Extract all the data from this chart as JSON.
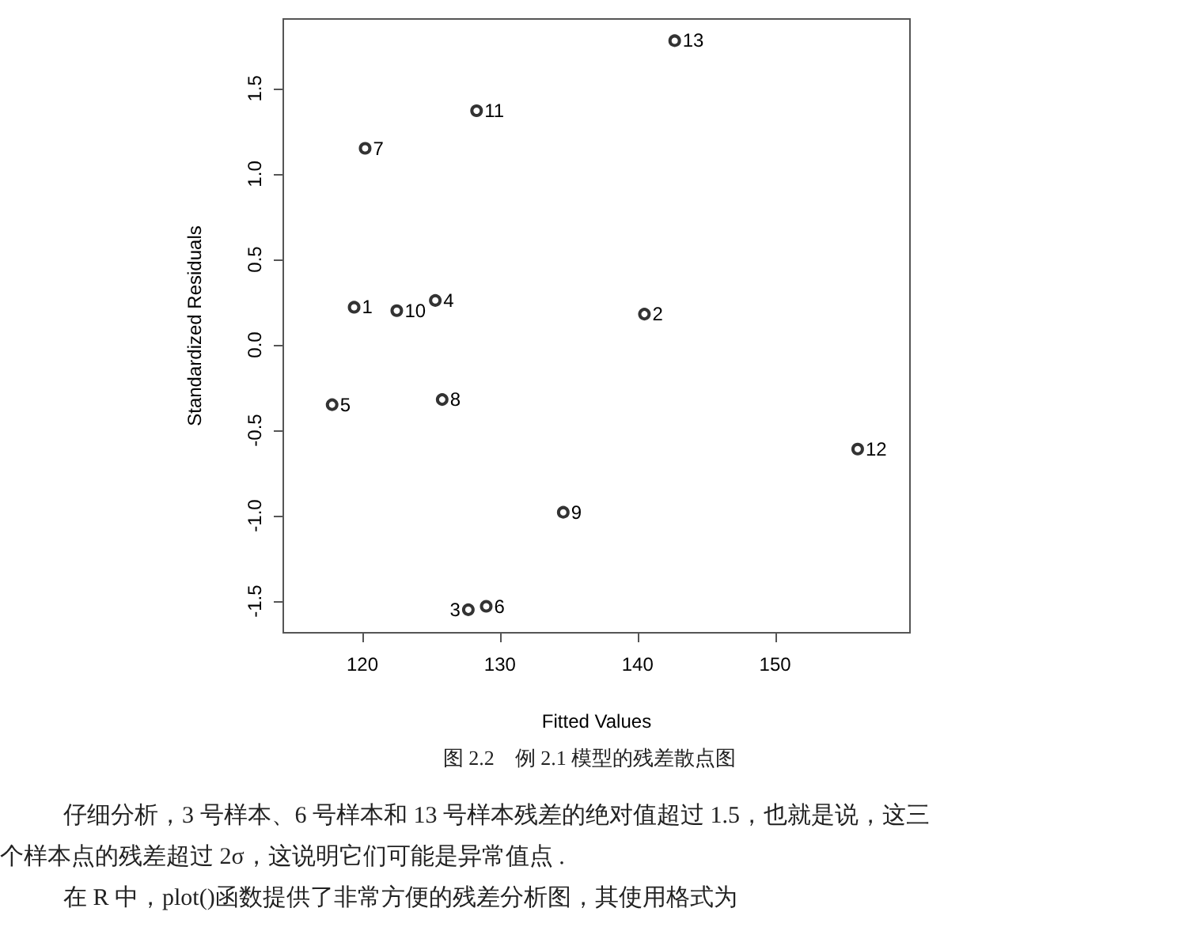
{
  "chart_data": {
    "type": "scatter",
    "xlabel": "Fitted Values",
    "ylabel": "Standardized Residuals",
    "x": [
      119.4,
      140.5,
      127.7,
      125.3,
      117.8,
      129.0,
      120.2,
      125.8,
      134.6,
      122.5,
      128.3,
      156.0,
      142.7
    ],
    "values": [
      0.22,
      0.18,
      -1.55,
      0.26,
      -0.35,
      -1.53,
      1.15,
      -0.32,
      -0.98,
      0.2,
      1.37,
      -0.61,
      1.78
    ],
    "color": "#000000",
    "marker": "circle",
    "grid": false,
    "xlim": [
      114.25,
      159.8
    ],
    "ylim": [
      -1.685,
      1.907
    ],
    "xticks": [
      120,
      130,
      140,
      150
    ],
    "yticks": [
      {
        "value": -1.5,
        "label": "-1.5"
      },
      {
        "value": -1,
        "label": "-1.0"
      },
      {
        "value": -0.5,
        "label": "-0.5"
      },
      {
        "value": 0,
        "label": "0.0"
      },
      {
        "value": 0.5,
        "label": "0.5"
      },
      {
        "value": 1,
        "label": "1.0"
      },
      {
        "value": 1.5,
        "label": "1.5"
      }
    ],
    "annotations": [
      "图 2.2　例 2.1 模型的残差散点图",
      "仔细分析，3 号样本、6 号样本和 13 号样本残差的绝对值超过 1.5，也就是说，这三",
      "个样本点的残差超过 2σ，这说明它们可能是异常值点 .",
      "在 R 中，plot()函数提供了非常方便的残差分析图，其使用格式为",
      {
        "text": "1",
        "x": 119.4,
        "y": 0.22
      },
      {
        "text": "2",
        "x": 140.5,
        "y": 0.18
      },
      {
        "text": "3",
        "x": 127.7,
        "y": -1.55
      },
      {
        "text": "4",
        "x": 125.3,
        "y": 0.26
      },
      {
        "text": "5",
        "x": 117.8,
        "y": -0.35
      },
      {
        "text": "6",
        "x": 129.0,
        "y": -1.53
      },
      {
        "text": "7",
        "x": 120.2,
        "y": 1.15
      },
      {
        "text": "8",
        "x": 125.8,
        "y": -0.32
      },
      {
        "text": "9",
        "x": 134.6,
        "y": -0.98
      },
      {
        "text": "10",
        "x": 122.5,
        "y": 0.2
      },
      {
        "text": "11",
        "x": 128.3,
        "y": 1.37
      },
      {
        "text": "12",
        "x": 156.0,
        "y": -0.61
      },
      {
        "text": "13",
        "x": 142.7,
        "y": 1.78
      }
    ]
  }
}
